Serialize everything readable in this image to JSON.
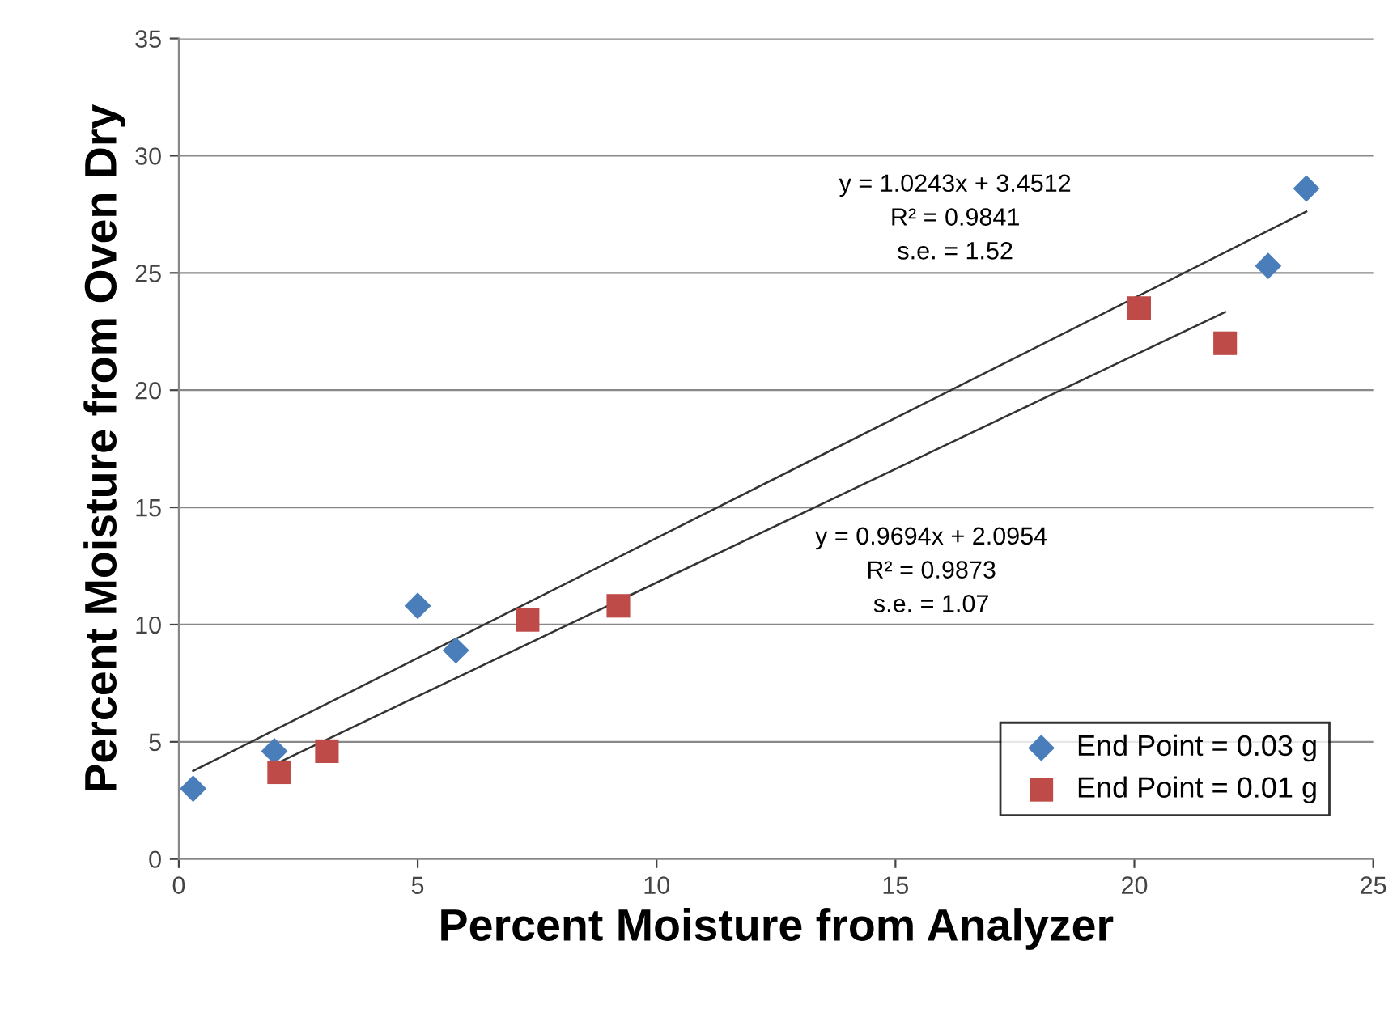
{
  "chart_data": {
    "type": "scatter",
    "xlabel": "Percent Moisture from Analyzer",
    "ylabel": "Percent Moisture from Oven Dry",
    "xlim": [
      0,
      25
    ],
    "xticks": [
      0,
      5,
      10,
      15,
      20,
      25
    ],
    "ylim": [
      0,
      35
    ],
    "yticks": [
      0,
      5,
      10,
      15,
      20,
      25,
      30,
      35
    ],
    "grid": "y",
    "legend": "bottom right",
    "series": [
      {
        "name": "End Point = 0.03 g",
        "marker": "diamond",
        "color": "#4a7ebb",
        "x": [
          0.3,
          2.0,
          5.0,
          5.8,
          22.8,
          23.6
        ],
        "values": [
          3.0,
          4.6,
          10.8,
          8.9,
          25.3,
          28.6
        ]
      },
      {
        "name": "End Point = 0.01 g",
        "marker": "square",
        "color": "#be4b48",
        "x": [
          2.1,
          3.1,
          7.3,
          9.2,
          20.1,
          21.9
        ],
        "values": [
          3.7,
          4.6,
          10.2,
          10.8,
          23.5,
          22.0
        ]
      },
      {
        "type": "line",
        "marker": "none",
        "color": "#333333",
        "x": [
          0.3,
          23.6
        ],
        "values": [
          3.76,
          27.62
        ]
      },
      {
        "type": "line",
        "marker": "none",
        "color": "#333333",
        "x": [
          2.1,
          21.9
        ],
        "values": [
          4.13,
          23.33
        ]
      }
    ],
    "annotations": [
      "y = 1.0243x + 3.4512\nR² = 0.9841\ns.e. = 1.52",
      "y = 0.9694x + 2.0954\nR² = 0.9873\ns.e. = 1.07"
    ]
  }
}
